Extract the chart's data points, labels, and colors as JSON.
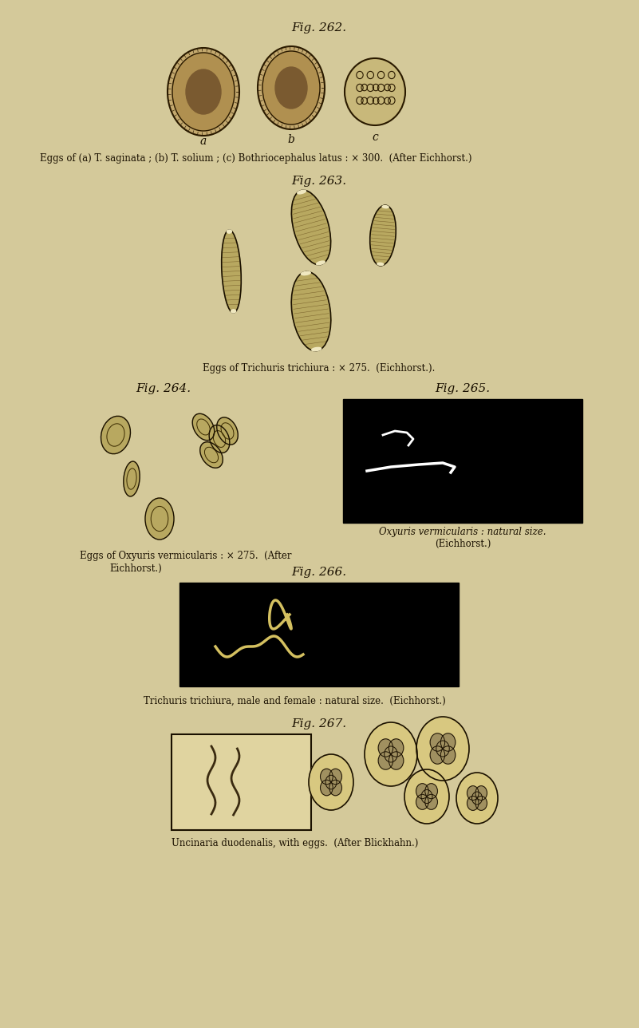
{
  "background_color": "#d4c99a",
  "page_bg": "#d4c99a",
  "title_fig262": "Fig. 262.",
  "title_fig263": "Fig. 263.",
  "title_fig264": "Fig. 264.",
  "title_fig265": "Fig. 265.",
  "title_fig266": "Fig. 266.",
  "title_fig267": "Fig. 267.",
  "caption_262": "Eggs of (a) T. saginata ; (b) T. solium ; (c) Bothriocephalus latus : × 300.  (After Eichhorst.)",
  "caption_263": "Eggs of Trichuris trichiura : × 275.  (Eichhorst.).",
  "caption_264a": "Eggs of Oxyuris vermicularis : × 275.  (After",
  "caption_264b": "Eichhorst.)",
  "caption_265a": "Oxyuris vermicularis : natural size.",
  "caption_265b": "(Eichhorst.)",
  "caption_266": "Trichuris trichiura, male and female : natural size.  (Eichhorst.)",
  "caption_267": "Uncinaria duodenalis, with eggs.  (After Blickhahn.)",
  "black_box_color": "#000000",
  "egg_outline_color": "#1a1a1a",
  "egg_fill_color": "#c8b87a",
  "white_line_color": "#e8d8a0"
}
